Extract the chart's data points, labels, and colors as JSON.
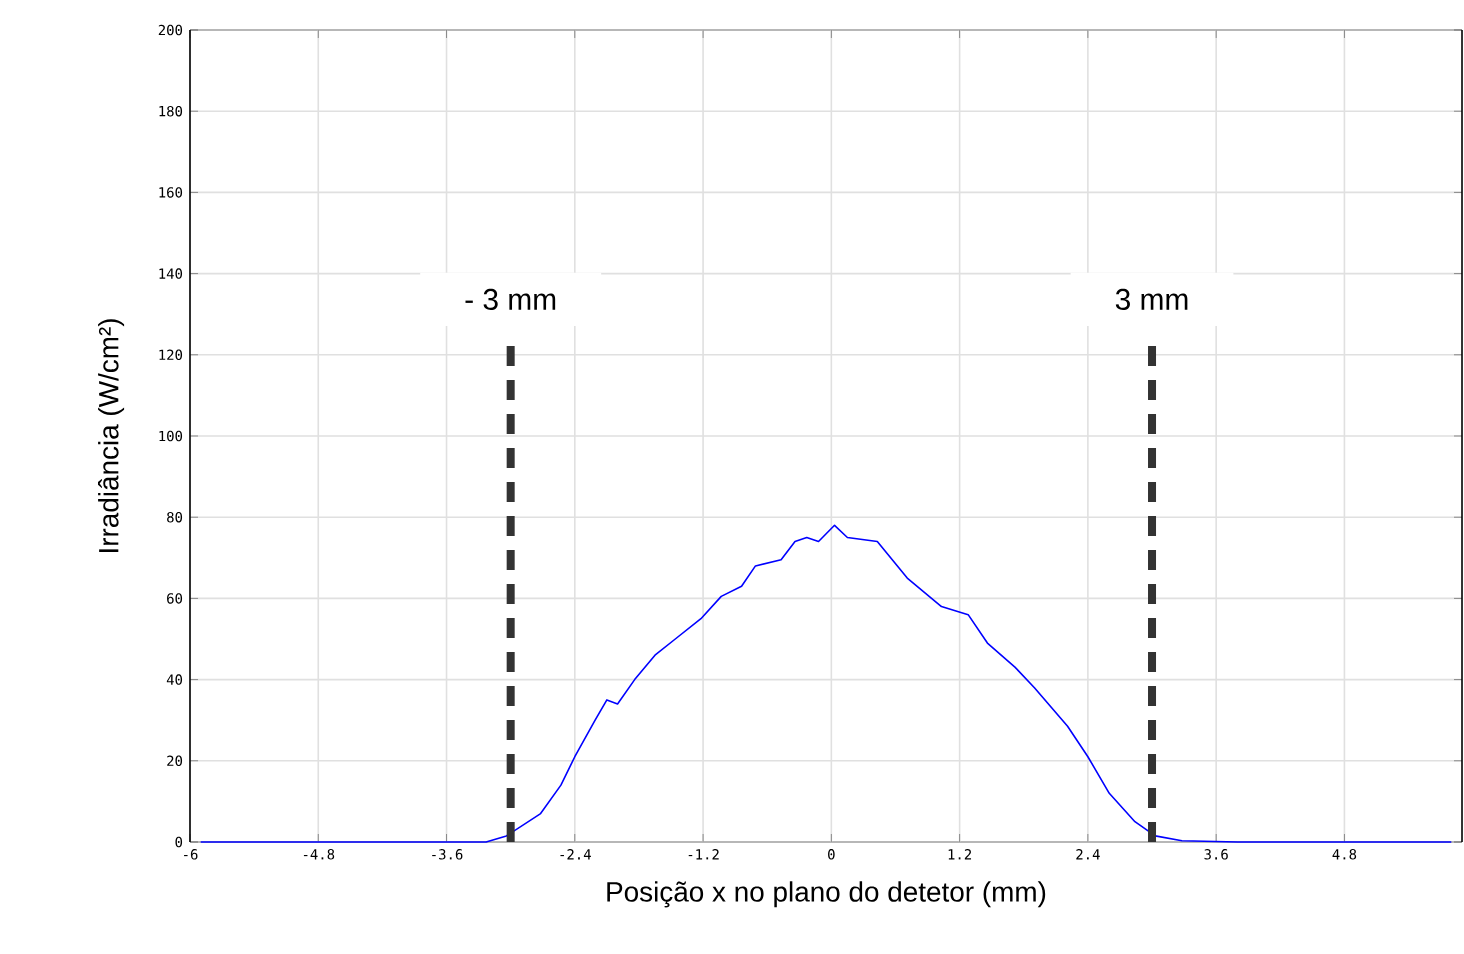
{
  "chart_data": {
    "type": "line",
    "xlabel": "Posição x no plano do detetor (mm)",
    "ylabel": "Irradiância (W/cm²)",
    "xlim": [
      -6,
      5.9
    ],
    "ylim": [
      0,
      200
    ],
    "xticks": [
      -6,
      -4.8,
      -3.6,
      -2.4,
      -1.2,
      0,
      1.2,
      2.4,
      3.6,
      4.8
    ],
    "yticks": [
      0,
      20,
      40,
      60,
      80,
      100,
      120,
      140,
      160,
      180,
      200
    ],
    "grid": true,
    "marker": "none",
    "series": [
      {
        "color": "#0000ff",
        "line_style": "solid",
        "x": [
          -5.9,
          -4.5,
          -3.4,
          -3.23,
          -3.04,
          -2.72,
          -2.53,
          -2.4,
          -2.21,
          -2.1,
          -2.0,
          -1.84,
          -1.65,
          -1.46,
          -1.22,
          -1.03,
          -0.84,
          -0.71,
          -0.47,
          -0.34,
          -0.23,
          -0.12,
          0.03,
          0.15,
          0.43,
          0.71,
          1.03,
          1.28,
          1.46,
          1.72,
          1.9,
          2.21,
          2.4,
          2.6,
          2.84,
          3.03,
          3.28,
          3.8,
          4.5,
          5.8
        ],
        "values": [
          0,
          0,
          0,
          0,
          1.5,
          7,
          14,
          21,
          30,
          35,
          34,
          40,
          46,
          50,
          55,
          60.5,
          63,
          68,
          69.5,
          74,
          75,
          74,
          78,
          75,
          74,
          65,
          58,
          56,
          49,
          43,
          38,
          28.5,
          21,
          12,
          5,
          1.5,
          0.3,
          0,
          0,
          0
        ]
      }
    ],
    "ref_lines": [
      {
        "axis": "x",
        "value": -3,
        "label": "- 3 mm",
        "color": "#333333",
        "line_style": "dashed"
      },
      {
        "axis": "x",
        "value": 3,
        "label": "3 mm",
        "color": "#333333",
        "line_style": "dashed"
      }
    ]
  }
}
